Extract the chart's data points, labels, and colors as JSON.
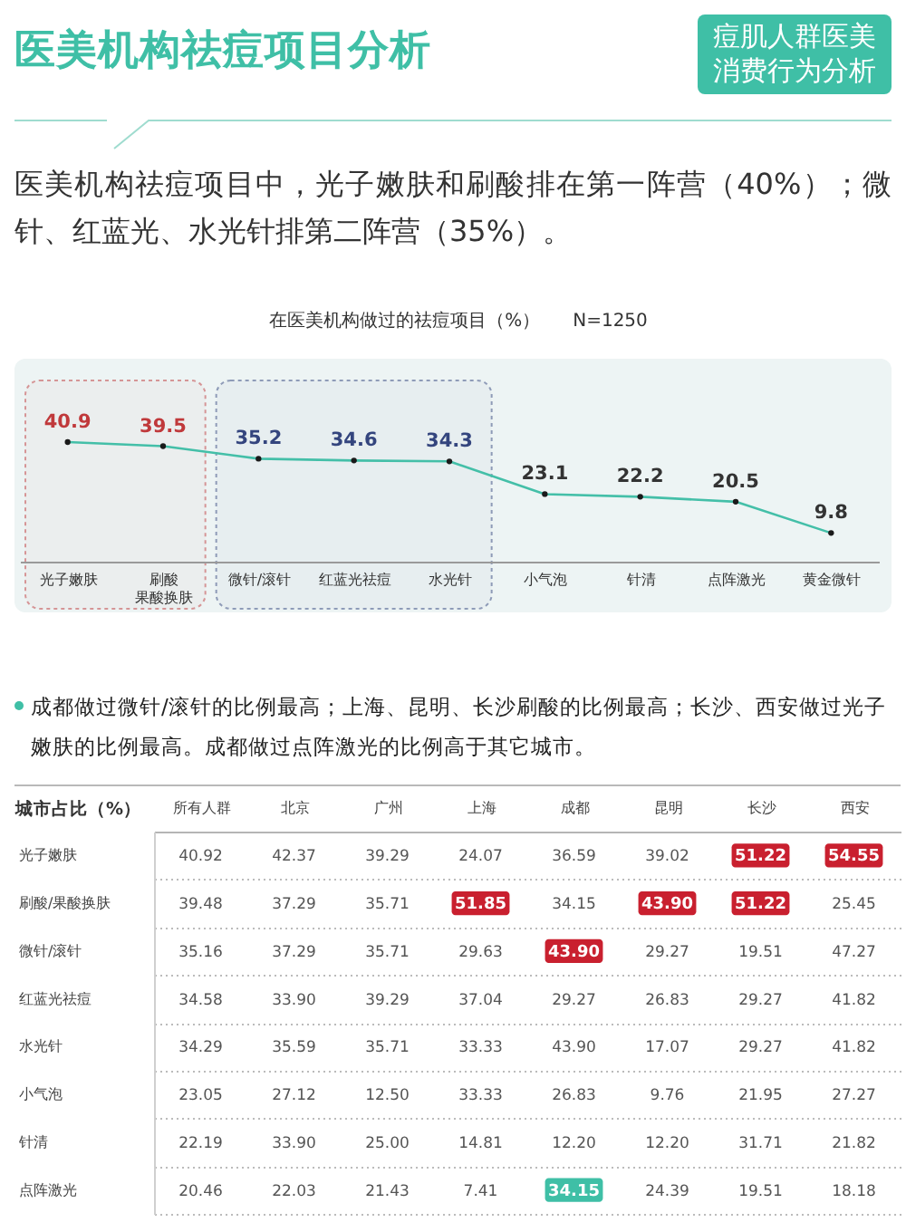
{
  "chart_data": [
    {
      "type": "other",
      "title": "医美机构祛痘项目分析",
      "subtitle": "医美机构祛痘项目中，光子嫩肤和刷酸排在第一阵营（40%）；微针、红蓝光、水光针排第二阵营（35%）。",
      "annotations": [
        "痘肌人群医美消费行为分析"
      ]
    },
    {
      "type": "line",
      "title": "在医美机构做过的祛痘项目（%）",
      "annotations": [
        "N=1250"
      ],
      "categories": [
        "光子嫩肤",
        "刷酸果酸换肤",
        "微针/滚针",
        "红蓝光祛痘",
        "水光针",
        "小气泡",
        "针清",
        "点阵激光",
        "黄金微针"
      ],
      "values": [
        40.9,
        39.5,
        35.2,
        34.6,
        34.3,
        23.1,
        22.2,
        20.5,
        9.8
      ],
      "color": "#44bfa8",
      "marker": "circle",
      "data_labels": true,
      "bands": [
        {
          "axis": "x",
          "from": "光子嫩肤",
          "to": "刷酸果酸换肤",
          "color": "#c0393b"
        },
        {
          "axis": "x",
          "from": "微针/滚针",
          "to": "水光针",
          "color": "#34457e"
        }
      ]
    },
    {
      "type": "heatmap",
      "title": "成都做过微针/滚针的比例最高；上海、昆明、长沙刷酸的比例最高；长沙、西安做过光子嫩肤的比例最高。成都做过点阵激光的比例高于其它城市。",
      "ylabel": "城市占比（%）",
      "categories": [
        "所有人群",
        "北京",
        "广州",
        "上海",
        "成都",
        "昆明",
        "长沙",
        "西安"
      ],
      "y_categories": [
        "光子嫩肤",
        "刷酸/果酸换肤",
        "微针/滚针",
        "红蓝光祛痘",
        "水光针",
        "小气泡",
        "针清",
        "点阵激光"
      ],
      "cells": [
        [
          40.92,
          42.37,
          39.29,
          24.07,
          36.59,
          39.02,
          51.22,
          54.55
        ],
        [
          39.48,
          37.29,
          35.71,
          51.85,
          34.15,
          43.9,
          51.22,
          25.45
        ],
        [
          35.16,
          37.29,
          35.71,
          29.63,
          43.9,
          29.27,
          19.51,
          47.27
        ],
        [
          34.58,
          33.9,
          39.29,
          37.04,
          29.27,
          26.83,
          29.27,
          41.82
        ],
        [
          34.29,
          35.59,
          35.71,
          33.33,
          43.9,
          17.07,
          29.27,
          41.82
        ],
        [
          23.05,
          27.12,
          12.5,
          33.33,
          26.83,
          9.76,
          21.95,
          27.27
        ],
        [
          22.19,
          33.9,
          25.0,
          14.81,
          12.2,
          12.2,
          31.71,
          21.82
        ],
        [
          20.46,
          22.03,
          21.43,
          7.41,
          34.15,
          24.39,
          19.51,
          18.18
        ]
      ],
      "cell_labels": [
        [
          "40.92",
          "42.37",
          "39.29",
          "24.07",
          "36.59",
          "39.02",
          "51.22",
          "54.55"
        ],
        [
          "39.48",
          "37.29",
          "35.71",
          "51.85",
          "34.15",
          "43.90",
          "51.22",
          "25.45"
        ],
        [
          "35.16",
          "37.29",
          "35.71",
          "29.63",
          "43.90",
          "29.27",
          "19.51",
          "47.27"
        ],
        [
          "34.58",
          "33.90",
          "39.29",
          "37.04",
          "29.27",
          "26.83",
          "29.27",
          "41.82"
        ],
        [
          "34.29",
          "35.59",
          "35.71",
          "33.33",
          "43.90",
          "17.07",
          "29.27",
          "41.82"
        ],
        [
          "23.05",
          "27.12",
          "12.50",
          "33.33",
          "26.83",
          "9.76",
          "21.95",
          "27.27"
        ],
        [
          "22.19",
          "33.90",
          "25.00",
          "14.81",
          "12.20",
          "12.20",
          "31.71",
          "21.82"
        ],
        [
          "20.46",
          "22.03",
          "21.43",
          "7.41",
          "34.15",
          "24.39",
          "19.51",
          "18.18"
        ]
      ],
      "colors": [
        [
          null,
          null,
          null,
          null,
          null,
          null,
          "#c9202f",
          "#c9202f"
        ],
        [
          null,
          null,
          null,
          "#c9202f",
          null,
          "#c9202f",
          "#c9202f",
          null
        ],
        [
          null,
          null,
          null,
          null,
          "#c9202f",
          null,
          null,
          null
        ],
        [
          null,
          null,
          null,
          null,
          null,
          null,
          null,
          null
        ],
        [
          null,
          null,
          null,
          null,
          null,
          null,
          null,
          null
        ],
        [
          null,
          null,
          null,
          null,
          null,
          null,
          null,
          null
        ],
        [
          null,
          null,
          null,
          null,
          null,
          null,
          null,
          null
        ],
        [
          null,
          null,
          null,
          null,
          "#3fbfa6",
          null,
          null,
          null
        ]
      ],
      "grid": "y",
      "data_labels": true
    }
  ]
}
